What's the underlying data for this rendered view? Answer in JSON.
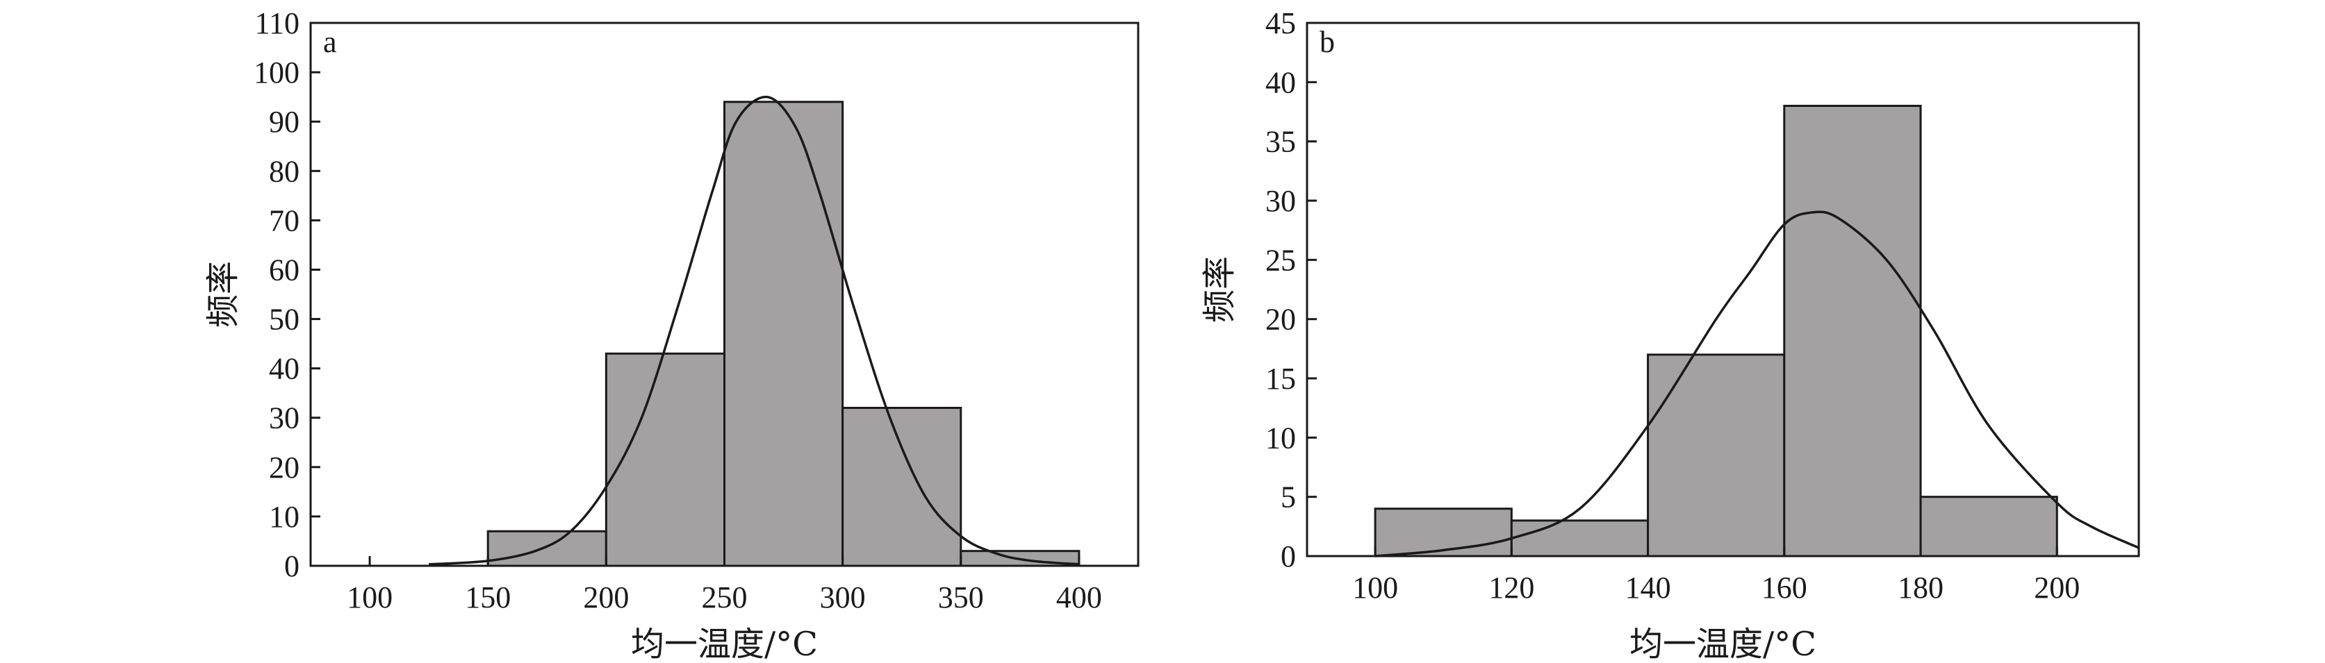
{
  "colors": {
    "bar_fill": "#a3a1a2",
    "stroke": "#1a1a1a"
  },
  "chart_data": [
    {
      "type": "bar",
      "panel_label": "a",
      "xlabel": "均一温度/°C",
      "ylabel": "频率",
      "xlim": [
        75,
        425
      ],
      "ylim": [
        0,
        110
      ],
      "xticks": [
        100,
        150,
        200,
        250,
        300,
        350,
        400
      ],
      "yticks": [
        0,
        10,
        20,
        30,
        40,
        50,
        60,
        70,
        80,
        90,
        100,
        110
      ],
      "bins": [
        {
          "x0": 150,
          "x1": 200,
          "value": 7
        },
        {
          "x0": 200,
          "x1": 250,
          "value": 43
        },
        {
          "x0": 250,
          "x1": 300,
          "value": 94
        },
        {
          "x0": 300,
          "x1": 350,
          "value": 32
        },
        {
          "x0": 350,
          "x1": 400,
          "value": 3
        }
      ],
      "fit_curve": {
        "type": "normal",
        "points": [
          [
            125,
            0.3
          ],
          [
            150,
            1
          ],
          [
            170,
            3
          ],
          [
            185,
            7
          ],
          [
            200,
            16
          ],
          [
            215,
            30
          ],
          [
            230,
            52
          ],
          [
            245,
            76
          ],
          [
            255,
            90
          ],
          [
            268,
            95
          ],
          [
            280,
            89
          ],
          [
            290,
            76
          ],
          [
            305,
            52
          ],
          [
            320,
            30
          ],
          [
            335,
            14
          ],
          [
            350,
            6
          ],
          [
            365,
            2.5
          ],
          [
            380,
            1
          ],
          [
            400,
            0.3
          ]
        ]
      }
    },
    {
      "type": "bar",
      "panel_label": "b",
      "xlabel": "均一温度/°C",
      "ylabel": "频率",
      "xlim": [
        90,
        212
      ],
      "ylim": [
        0,
        45
      ],
      "xticks": [
        100,
        120,
        140,
        160,
        180,
        200
      ],
      "yticks": [
        0,
        5,
        10,
        15,
        20,
        25,
        30,
        35,
        40,
        45
      ],
      "bins": [
        {
          "x0": 100,
          "x1": 120,
          "value": 4
        },
        {
          "x0": 120,
          "x1": 140,
          "value": 3
        },
        {
          "x0": 140,
          "x1": 160,
          "value": 17
        },
        {
          "x0": 160,
          "x1": 180,
          "value": 38
        },
        {
          "x0": 180,
          "x1": 200,
          "value": 5
        }
      ],
      "fit_curve": {
        "type": "normal",
        "points": [
          [
            100,
            0
          ],
          [
            110,
            0.5
          ],
          [
            120,
            1.5
          ],
          [
            130,
            4
          ],
          [
            140,
            11
          ],
          [
            150,
            20
          ],
          [
            155,
            24
          ],
          [
            160,
            28
          ],
          [
            164,
            29
          ],
          [
            168,
            28.5
          ],
          [
            175,
            25
          ],
          [
            182,
            19
          ],
          [
            190,
            11
          ],
          [
            200,
            4.5
          ],
          [
            205,
            2.5
          ],
          [
            212,
            0.7
          ]
        ]
      }
    }
  ]
}
